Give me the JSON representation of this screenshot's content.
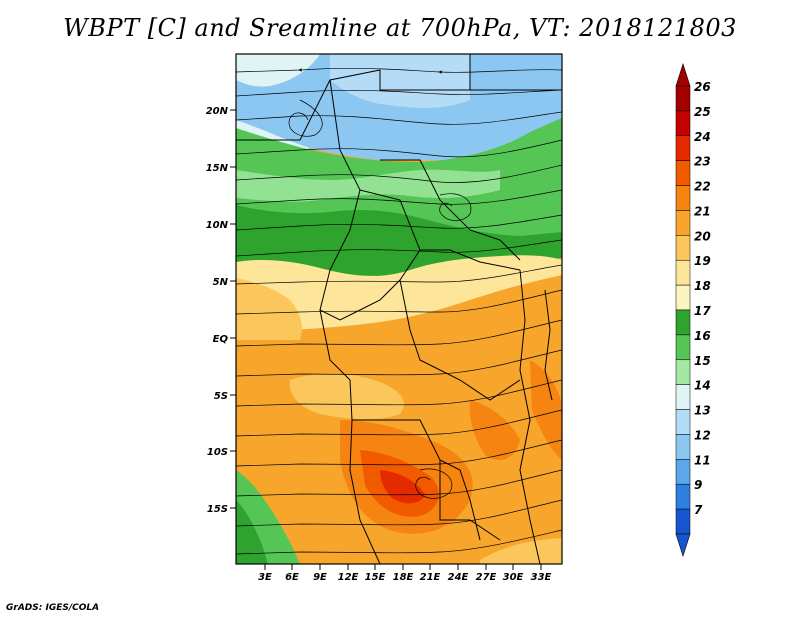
{
  "title": "WBPT [C] and Sreamline at 700hPa, VT: 2018121803",
  "credit": "GrADS: IGES/COLA",
  "map": {
    "y_labels": [
      "20N",
      "15N",
      "10N",
      "5N",
      "EQ",
      "5S",
      "10S",
      "15S"
    ],
    "x_labels": [
      "3E",
      "6E",
      "9E",
      "12E",
      "15E",
      "18E",
      "21E",
      "24E",
      "27E",
      "30E",
      "33E"
    ]
  },
  "colorbar": {
    "labels": [
      "26",
      "25",
      "24",
      "23",
      "22",
      "21",
      "20",
      "19",
      "18",
      "17",
      "16",
      "15",
      "14",
      "13",
      "12",
      "11",
      "9",
      "7"
    ],
    "colors": [
      "#a50000",
      "#c40000",
      "#e52a00",
      "#f25a00",
      "#f58410",
      "#f7a52b",
      "#fbc75c",
      "#fde69a",
      "#fbf4c0",
      "#2ea32e",
      "#55c555",
      "#a3e8a3",
      "#dff5f5",
      "#b4dcf7",
      "#8cc7f2",
      "#5ca6ea",
      "#2f7fe0",
      "#1655d0"
    ]
  }
}
